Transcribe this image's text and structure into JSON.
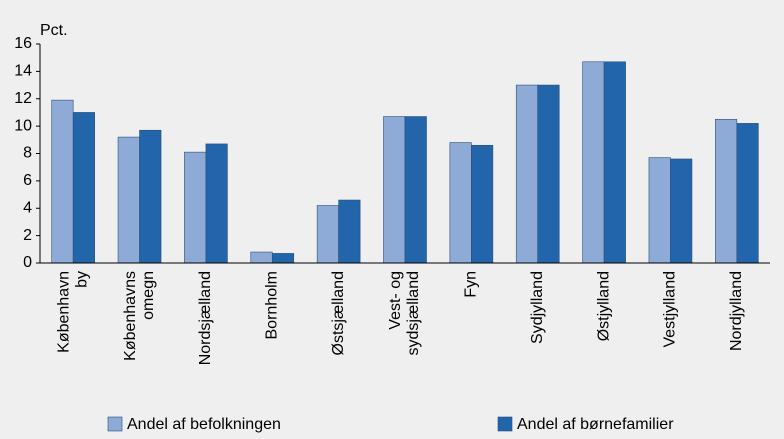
{
  "chart_data": {
    "type": "bar",
    "y_label": "Pct.",
    "categories": [
      [
        "København",
        "by"
      ],
      [
        "Københavns",
        "omegn"
      ],
      [
        "Nordsjælland"
      ],
      [
        "Bornholm"
      ],
      [
        "Østsjælland"
      ],
      [
        "Vest- og",
        "sydsjælland"
      ],
      [
        "Fyn"
      ],
      [
        "Sydjylland"
      ],
      [
        "Østjylland"
      ],
      [
        "Vestjylland"
      ],
      [
        "Nordjylland"
      ]
    ],
    "series": [
      {
        "name": "Andel af befolkningen",
        "color": "#8eaad6",
        "values": [
          11.9,
          9.2,
          8.1,
          0.8,
          4.2,
          10.7,
          8.8,
          13.0,
          14.7,
          7.7,
          10.5
        ]
      },
      {
        "name": "Andel af børnefamilier",
        "color": "#2265aa",
        "values": [
          11.0,
          9.7,
          8.7,
          0.7,
          4.6,
          10.7,
          8.6,
          13.0,
          14.7,
          7.6,
          10.2
        ]
      }
    ],
    "ylim": [
      0,
      16
    ],
    "yticks": [
      0,
      2,
      4,
      6,
      8,
      10,
      12,
      14,
      16
    ],
    "grid": false
  }
}
